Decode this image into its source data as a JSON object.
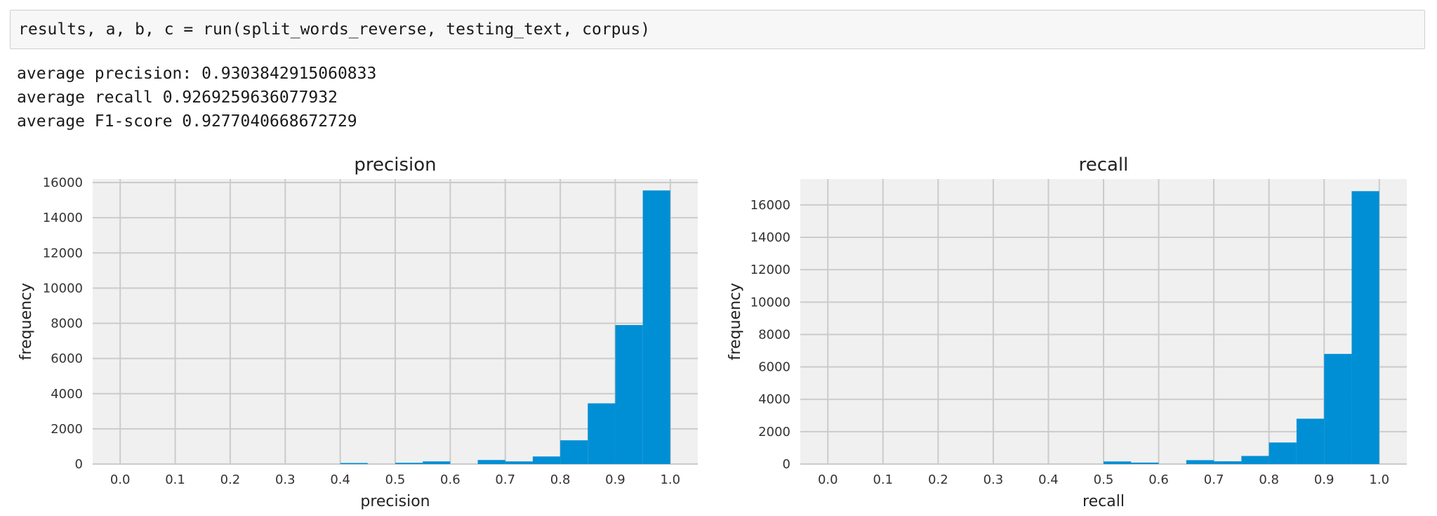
{
  "code": {
    "input": "results, a, b, c = run(split_words_reverse, testing_text, corpus)"
  },
  "output": {
    "lines": [
      "average precision: 0.9303842915060833",
      "average recall 0.9269259636077932",
      "average F1-score 0.9277040668672729"
    ]
  },
  "colors": {
    "bar": "#008fd5",
    "plot_bg": "#f0f0f0",
    "grid": "#cbcbcb"
  },
  "chart_data": [
    {
      "type": "bar",
      "title": "precision",
      "xlabel": "precision",
      "ylabel": "frequency",
      "xlim": [
        -0.05,
        1.05
      ],
      "ylim": [
        0,
        16200
      ],
      "xticks": [
        "0.0",
        "0.1",
        "0.2",
        "0.3",
        "0.4",
        "0.5",
        "0.6",
        "0.7",
        "0.8",
        "0.9",
        "1.0"
      ],
      "yticks": [
        "0",
        "2000",
        "4000",
        "6000",
        "8000",
        "10000",
        "12000",
        "14000",
        "16000"
      ],
      "bin_width": 0.05,
      "bins": [
        {
          "x0": 0.4,
          "value": 60
        },
        {
          "x0": 0.5,
          "value": 70
        },
        {
          "x0": 0.55,
          "value": 150
        },
        {
          "x0": 0.65,
          "value": 230
        },
        {
          "x0": 0.7,
          "value": 150
        },
        {
          "x0": 0.75,
          "value": 430
        },
        {
          "x0": 0.8,
          "value": 1350
        },
        {
          "x0": 0.85,
          "value": 3450
        },
        {
          "x0": 0.9,
          "value": 7900
        },
        {
          "x0": 0.95,
          "value": 15550
        }
      ],
      "grid": true
    },
    {
      "type": "bar",
      "title": "recall",
      "xlabel": "recall",
      "ylabel": "frequency",
      "xlim": [
        -0.05,
        1.05
      ],
      "ylim": [
        0,
        17600
      ],
      "xticks": [
        "0.0",
        "0.1",
        "0.2",
        "0.3",
        "0.4",
        "0.5",
        "0.6",
        "0.7",
        "0.8",
        "0.9",
        "1.0"
      ],
      "yticks": [
        "0",
        "2000",
        "4000",
        "6000",
        "8000",
        "10000",
        "12000",
        "14000",
        "16000"
      ],
      "bin_width": 0.05,
      "bins": [
        {
          "x0": 0.5,
          "value": 160
        },
        {
          "x0": 0.55,
          "value": 90
        },
        {
          "x0": 0.65,
          "value": 240
        },
        {
          "x0": 0.7,
          "value": 170
        },
        {
          "x0": 0.75,
          "value": 500
        },
        {
          "x0": 0.8,
          "value": 1330
        },
        {
          "x0": 0.85,
          "value": 2800
        },
        {
          "x0": 0.9,
          "value": 6800
        },
        {
          "x0": 0.95,
          "value": 16850
        }
      ],
      "grid": true
    }
  ]
}
